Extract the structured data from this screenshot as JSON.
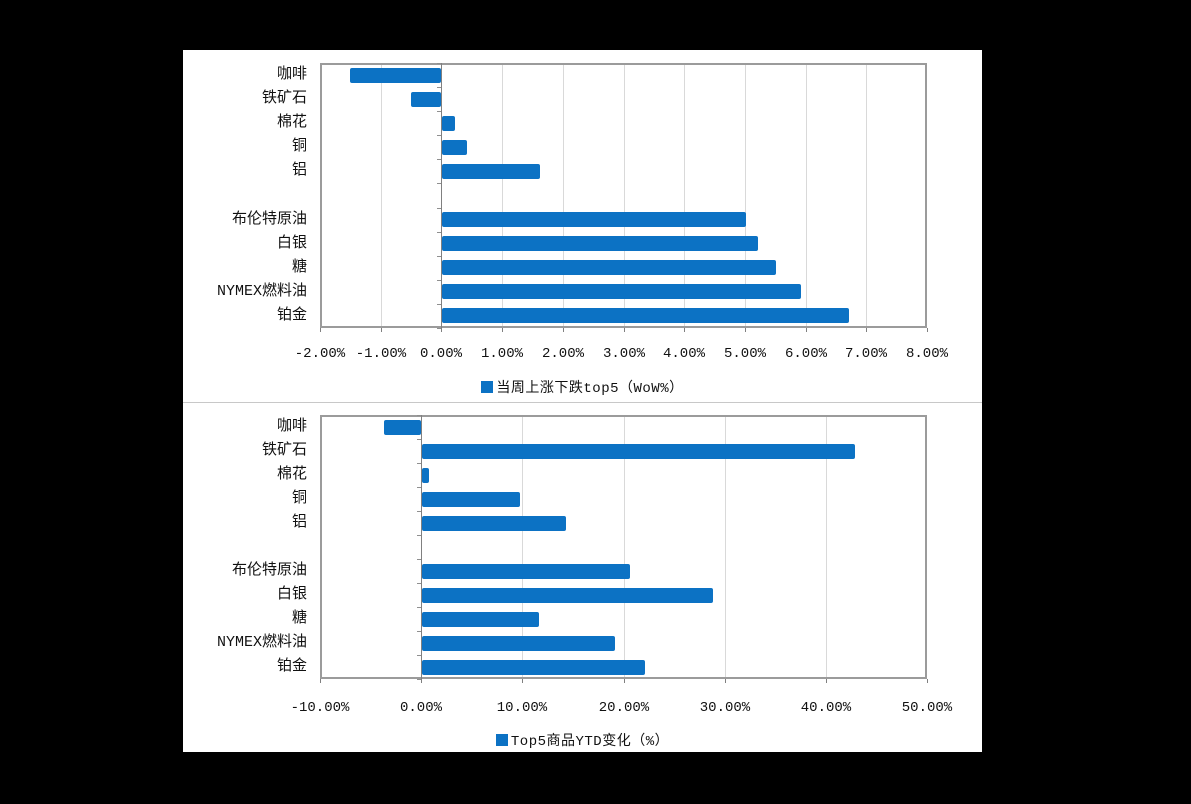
{
  "colors": {
    "page_background": "#000000",
    "panel_background": "#ffffff",
    "bar": "#0c72c4",
    "plot_border": "#9b9b9b",
    "gridline": "#d9d9d9",
    "zero_axis": "#808080",
    "axis_tick": "#8f8f8f",
    "divider": "#c8c8c8",
    "text": "#111111"
  },
  "chart_data": [
    {
      "type": "bar",
      "orientation": "horizontal",
      "legend": "当周上涨下跌top5（WoW%）",
      "legend_position": "bottom",
      "grid": true,
      "categories": [
        "咖啡",
        "铁矿石",
        "棉花",
        "铜",
        "铝",
        "",
        "布伦特原油",
        "白银",
        "糖",
        "NYMEX燃料油",
        "铂金"
      ],
      "values": [
        -1.5,
        -0.5,
        0.2,
        0.4,
        1.6,
        null,
        5.0,
        5.2,
        5.5,
        5.9,
        6.7
      ],
      "unit": "%",
      "x_axis": {
        "min": -2,
        "max": 8,
        "tick_values": [
          -2,
          -1,
          0,
          1,
          2,
          3,
          4,
          5,
          6,
          7,
          8
        ],
        "tick_labels": [
          "-2.00%",
          "-1.00%",
          "0.00%",
          "1.00%",
          "2.00%",
          "3.00%",
          "4.00%",
          "5.00%",
          "6.00%",
          "7.00%",
          "8.00%"
        ]
      }
    },
    {
      "type": "bar",
      "orientation": "horizontal",
      "legend": "Top5商品YTD变化（%）",
      "legend_position": "bottom",
      "grid": true,
      "categories": [
        "咖啡",
        "铁矿石",
        "棉花",
        "铜",
        "铝",
        "",
        "布伦特原油",
        "白银",
        "糖",
        "NYMEX燃料油",
        "铂金"
      ],
      "values": [
        -3.7,
        42.8,
        0.7,
        9.7,
        14.2,
        null,
        20.5,
        28.7,
        11.5,
        19.1,
        22.0
      ],
      "unit": "%",
      "x_axis": {
        "min": -10,
        "max": 50,
        "tick_values": [
          -10,
          0,
          10,
          20,
          30,
          40,
          50
        ],
        "tick_labels": [
          "-10.00%",
          "0.00%",
          "10.00%",
          "20.00%",
          "30.00%",
          "40.00%",
          "50.00%"
        ]
      }
    }
  ]
}
